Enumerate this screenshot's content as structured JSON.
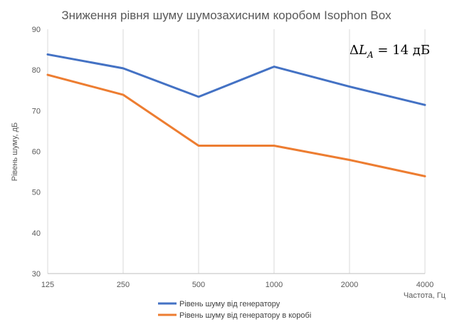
{
  "chart_data": {
    "type": "line",
    "title": "Зниження рівня шуму шумозахисним коробом Isophon Box",
    "xlabel": "Частота, Гц",
    "ylabel": "Рівень шуму, дБ",
    "categories": [
      "125",
      "250",
      "500",
      "1000",
      "2000",
      "4000"
    ],
    "ylim": [
      30,
      90
    ],
    "yticks": [
      "30",
      "40",
      "50",
      "60",
      "70",
      "80",
      "90"
    ],
    "grid": "vertical",
    "legend_position": "bottom",
    "annotation": "ΔL_A = 14 дБ",
    "annotation_parts": {
      "delta": "Δ",
      "L": "L",
      "sub": "A",
      "rest": " = 14 дБ"
    },
    "series": [
      {
        "name": "Рівень шуму від генератору",
        "values": [
          83.8,
          80.4,
          73.4,
          80.8,
          75.9,
          71.4
        ],
        "color": "#4472C4"
      },
      {
        "name": "Рівень шуму від генератору в коробі",
        "values": [
          78.8,
          73.9,
          61.4,
          61.4,
          57.9,
          53.9
        ],
        "color": "#ED7D31"
      }
    ]
  }
}
